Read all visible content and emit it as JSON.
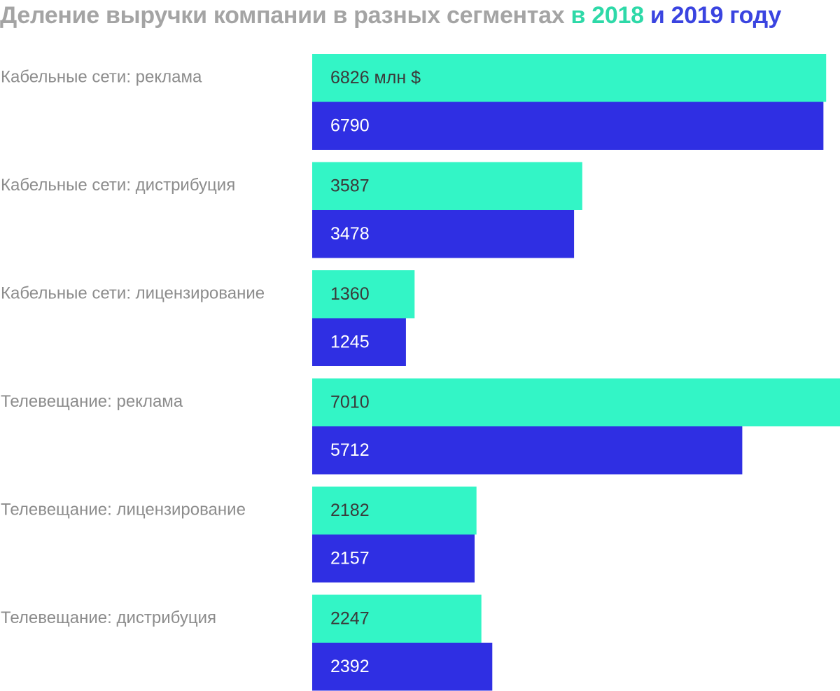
{
  "title": {
    "main": "Деление выручки компании в разных сегментах",
    "in_word": "в",
    "year_a": "2018",
    "and_word": "и",
    "year_b": "2019",
    "tail": "году"
  },
  "chart_data": {
    "type": "bar",
    "orientation": "horizontal",
    "title": "Деление выручки компании в разных сегментах в 2018 и 2019 году",
    "unit": "млн $",
    "categories": [
      "Кабельные сети: реклама",
      "Кабельные сети: дистрибуция",
      "Кабельные сети: лицензирование",
      "Телевещание: реклама",
      "Телевещание: лицензирование",
      "Телевещание: дистрибуция"
    ],
    "series": [
      {
        "name": "2018",
        "color": "#33f5c6",
        "text_color": "#3a3a3a",
        "values": [
          6826,
          3587,
          1360,
          7010,
          2182,
          2247
        ],
        "labels": [
          "6826 млн $",
          "3587",
          "1360",
          "7010",
          "2182",
          "2247"
        ]
      },
      {
        "name": "2019",
        "color": "#2f2fe3",
        "text_color": "#ffffff",
        "values": [
          6790,
          3478,
          1245,
          5712,
          2157,
          2392
        ],
        "labels": [
          "6790",
          "3478",
          "1245",
          "5712",
          "2157",
          "2392"
        ]
      }
    ],
    "xlim": [
      0,
      7010
    ],
    "grid": false,
    "legend": "in title"
  }
}
